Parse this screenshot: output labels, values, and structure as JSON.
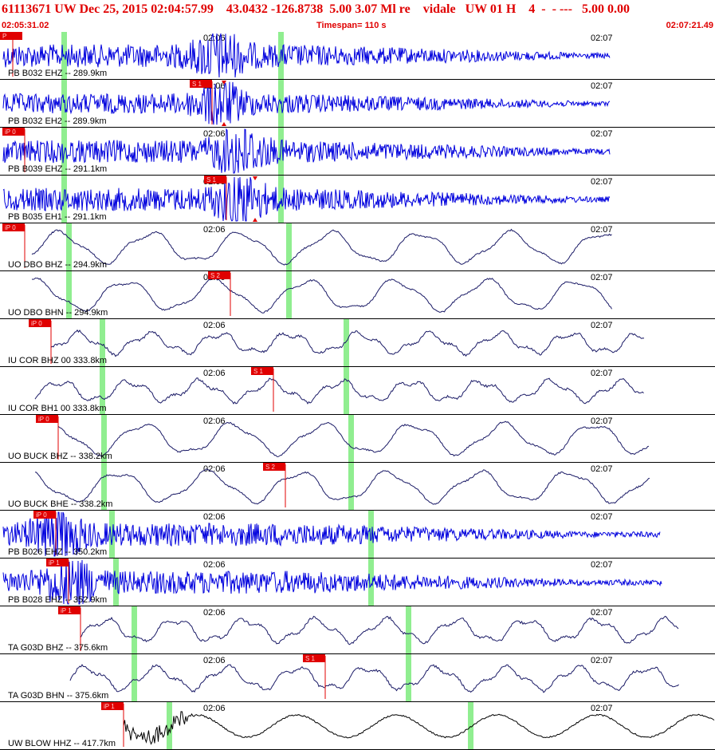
{
  "header": {
    "title": "61113671 UW Dec 25, 2015 02:04:57.99    43.0432 -126.8738  5.00 3.07 Ml re    vidale   UW 01 H    4  -  - ---   5.00 0.00",
    "start_time": "02:05:31.02",
    "timespan": "Timespan= 110 s",
    "end_time": "02:07:21.49"
  },
  "colors": {
    "title": "#e00000",
    "trace_blue": "#0000dd",
    "trace_navy": "#1a1a66",
    "trace_black": "#000000",
    "pick": "#e00000",
    "marker": "#90ee90"
  },
  "chart_data": {
    "type": "line",
    "x_axis_ticks": [
      "02:06",
      "02:07"
    ],
    "grid": true,
    "series": [
      {
        "name": "PB B032 EHZ -- 289.9km",
        "color": "blue",
        "style": "hf",
        "amp": 16,
        "pick": "P",
        "pick_x": 16,
        "arr": 275,
        "marker": 352,
        "marker2": 80,
        "end": 765
      },
      {
        "name": "PB B032 EH2 -- 289.9km",
        "color": "blue",
        "style": "hf",
        "amp": 14,
        "pick": "S 1",
        "pick_x": 266,
        "arr": 275,
        "marker": 352,
        "marker2": 80,
        "end": 765,
        "ticks": [
          281
        ]
      },
      {
        "name": "PB B039 EHZ -- 291.1km",
        "color": "blue",
        "style": "hf",
        "amp": 16,
        "pick": "iP 0",
        "pick_x": 31,
        "arr": 300,
        "marker": 352,
        "marker2": 80,
        "end": 765
      },
      {
        "name": "PB B035 EH1 -- 291.1km",
        "color": "blue",
        "style": "hf",
        "amp": 16,
        "pick": "S 1",
        "pick_x": 284,
        "arr": 300,
        "marker": 352,
        "marker2": 80,
        "end": 765,
        "ticks": [
          320
        ]
      },
      {
        "name": "UO DBO BHZ -- 294.9km",
        "color": "navy",
        "style": "lf",
        "amp": 22,
        "pick": "iP 0",
        "pick_x": 31,
        "arr": 40,
        "marker": 362,
        "marker2": 86,
        "end": 768
      },
      {
        "name": "UO DBO BHN -- 294.9km",
        "color": "navy",
        "style": "lf",
        "amp": 22,
        "pick": "S 2",
        "pick_x": 289,
        "arr": 40,
        "marker": 362,
        "marker2": 86,
        "end": 768
      },
      {
        "name": "IU COR BHZ 00 333.8km",
        "color": "navy",
        "style": "mix",
        "amp": 16,
        "pick": "iP 0",
        "pick_x": 64,
        "arr": 64,
        "marker": 434,
        "marker2": 128,
        "end": 808
      },
      {
        "name": "IU COR BH1 00 333.8km",
        "color": "navy",
        "style": "mix",
        "amp": 16,
        "pick": "S 1",
        "pick_x": 343,
        "arr": 44,
        "marker": 434,
        "marker2": 128,
        "end": 808
      },
      {
        "name": "UO BUCK BHZ -- 338.2km",
        "color": "navy",
        "style": "lf",
        "amp": 22,
        "pick": "iP 0",
        "pick_x": 73,
        "arr": 73,
        "marker": 440,
        "marker2": 130,
        "end": 815
      },
      {
        "name": "UO BUCK BHE -- 338.2km",
        "color": "navy",
        "style": "lf",
        "amp": 22,
        "pick": "S 2",
        "pick_x": 358,
        "arr": 44,
        "marker": 440,
        "marker2": 130,
        "end": 815
      },
      {
        "name": "PB B026 EHZ -- 350.2km",
        "color": "blue",
        "style": "hf",
        "amp": 16,
        "pick": "iP 0",
        "pick_x": 70,
        "arr": 72,
        "marker": 465,
        "marker2": 140,
        "end": 828
      },
      {
        "name": "PB B028 EHZ -- 352.9km",
        "color": "blue",
        "style": "hf",
        "amp": 16,
        "pick": "iP 1",
        "pick_x": 86,
        "arr": 88,
        "marker": 465,
        "marker2": 145,
        "end": 830
      },
      {
        "name": "TA G03D BHZ -- 375.6km",
        "color": "navy",
        "style": "mix",
        "amp": 18,
        "pick": "iP 1",
        "pick_x": 101,
        "arr": 101,
        "marker": 512,
        "marker2": 168,
        "end": 852
      },
      {
        "name": "TA G03D BHN -- 375.6km",
        "color": "navy",
        "style": "mix",
        "amp": 18,
        "pick": "S 1",
        "pick_x": 408,
        "arr": 88,
        "marker": 512,
        "marker2": 168,
        "end": 852
      },
      {
        "name": "UW BLOW HHZ -- 417.7km",
        "color": "black",
        "style": "blow",
        "amp": 20,
        "pick": "iP 1",
        "pick_x": 155,
        "arr": 155,
        "marker": 590,
        "marker2": 212,
        "end": 897
      }
    ]
  }
}
